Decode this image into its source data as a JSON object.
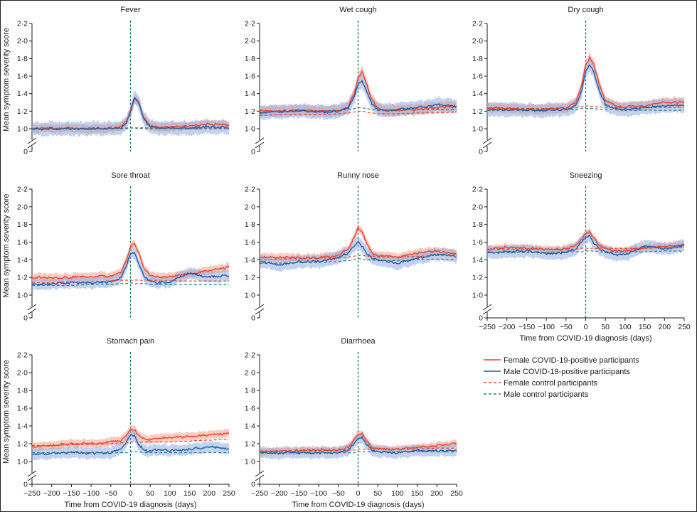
{
  "figure": {
    "border_color": "#222222",
    "colors": {
      "female_line": "#e8432c",
      "female_band": "#f4a08e",
      "male_line": "#1f5ba6",
      "male_band": "#8aa6dc",
      "female_control": "#e8432c",
      "male_control": "#2a7a8a",
      "diagnosis_line": "#1e6e68"
    }
  },
  "chart_data": {
    "type": "line",
    "shared": {
      "x_range": [
        -250,
        250
      ],
      "x_ticks": [
        -250,
        -200,
        -150,
        -100,
        -50,
        0,
        50,
        100,
        150,
        200,
        250
      ],
      "x_tick_labels": [
        "−250",
        "−200",
        "−150",
        "−100",
        "−50",
        "0",
        "50",
        "100",
        "150",
        "200",
        "250"
      ],
      "y_range": [
        1.0,
        2.2
      ],
      "y_ticks": [
        1.0,
        1.2,
        1.4,
        1.6,
        1.8,
        2.0,
        2.2
      ],
      "y_tick_labels": [
        "1·0",
        "1·2",
        "1·4",
        "1·6",
        "1·8",
        "2·0",
        "2·2"
      ],
      "y_zero_label": "0",
      "axis_break": true,
      "ylabel": "Mean symptom severity score",
      "xlabel": "Time from COVID-19 diagnosis (days)",
      "diagnosis_marker_x": 0,
      "grid": false
    },
    "series_names": [
      "Female COVID-19-positive participants",
      "Male COVID-19-positive participants",
      "Female control participants",
      "Male control participants"
    ],
    "x": [
      -250,
      -200,
      -150,
      -100,
      -50,
      -25,
      -10,
      0,
      10,
      20,
      35,
      50,
      75,
      100,
      150,
      200,
      250
    ],
    "panels": [
      {
        "title": "Fever",
        "series": [
          {
            "name": "Female COVID-19-positive participants",
            "values": [
              1.0,
              1.0,
              1.01,
              1.0,
              1.01,
              1.02,
              1.08,
              1.22,
              1.34,
              1.3,
              1.12,
              1.03,
              1.02,
              1.02,
              1.03,
              1.05,
              1.04
            ],
            "band": 0.06
          },
          {
            "name": "Male COVID-19-positive participants",
            "values": [
              1.0,
              1.0,
              1.0,
              1.0,
              1.0,
              1.01,
              1.06,
              1.2,
              1.35,
              1.3,
              1.1,
              1.02,
              1.01,
              1.01,
              1.01,
              1.02,
              1.01
            ],
            "band": 0.1
          },
          {
            "name": "Female control participants",
            "values": [
              1.0,
              1.0,
              1.0,
              1.0,
              1.0,
              1.0,
              1.01,
              1.01,
              1.01,
              1.01,
              1.01,
              1.01,
              1.01,
              1.01,
              1.01,
              1.01,
              1.01
            ]
          },
          {
            "name": "Male control participants",
            "values": [
              1.0,
              1.0,
              1.0,
              1.0,
              1.0,
              1.0,
              1.0,
              1.01,
              1.01,
              1.0,
              1.0,
              1.0,
              1.0,
              1.0,
              1.0,
              1.0,
              1.0
            ]
          }
        ]
      },
      {
        "title": "Wet cough",
        "series": [
          {
            "name": "Female COVID-19-positive participants",
            "values": [
              1.2,
              1.2,
              1.21,
              1.2,
              1.2,
              1.25,
              1.4,
              1.58,
              1.66,
              1.52,
              1.32,
              1.24,
              1.2,
              1.21,
              1.22,
              1.24,
              1.25
            ],
            "band": 0.08
          },
          {
            "name": "Male COVID-19-positive participants",
            "values": [
              1.18,
              1.19,
              1.2,
              1.19,
              1.2,
              1.24,
              1.36,
              1.5,
              1.54,
              1.44,
              1.28,
              1.22,
              1.2,
              1.22,
              1.24,
              1.27,
              1.26
            ],
            "band": 0.1
          },
          {
            "name": "Female control participants",
            "values": [
              1.15,
              1.16,
              1.16,
              1.16,
              1.17,
              1.18,
              1.19,
              1.2,
              1.2,
              1.19,
              1.18,
              1.17,
              1.17,
              1.17,
              1.18,
              1.18,
              1.19
            ]
          },
          {
            "name": "Male control participants",
            "values": [
              1.19,
              1.2,
              1.2,
              1.2,
              1.21,
              1.22,
              1.23,
              1.24,
              1.24,
              1.23,
              1.22,
              1.21,
              1.21,
              1.21,
              1.22,
              1.22,
              1.22
            ]
          }
        ]
      },
      {
        "title": "Dry cough",
        "series": [
          {
            "name": "Female COVID-19-positive participants",
            "values": [
              1.24,
              1.23,
              1.22,
              1.22,
              1.24,
              1.3,
              1.5,
              1.72,
              1.82,
              1.75,
              1.5,
              1.32,
              1.26,
              1.25,
              1.26,
              1.3,
              1.3
            ],
            "band": 0.07
          },
          {
            "name": "Male COVID-19-positive participants",
            "values": [
              1.22,
              1.22,
              1.21,
              1.21,
              1.22,
              1.26,
              1.44,
              1.64,
              1.73,
              1.66,
              1.42,
              1.28,
              1.23,
              1.22,
              1.24,
              1.26,
              1.27
            ],
            "band": 0.1
          },
          {
            "name": "Female control participants",
            "values": [
              1.23,
              1.23,
              1.23,
              1.23,
              1.24,
              1.24,
              1.25,
              1.26,
              1.26,
              1.25,
              1.25,
              1.24,
              1.24,
              1.24,
              1.24,
              1.24,
              1.24
            ]
          },
          {
            "name": "Male control participants",
            "values": [
              1.21,
              1.21,
              1.21,
              1.21,
              1.22,
              1.22,
              1.23,
              1.23,
              1.23,
              1.23,
              1.22,
              1.22,
              1.22,
              1.21,
              1.21,
              1.21,
              1.21
            ]
          }
        ]
      },
      {
        "title": "Sore throat",
        "series": [
          {
            "name": "Female COVID-19-positive participants",
            "values": [
              1.2,
              1.2,
              1.2,
              1.21,
              1.22,
              1.26,
              1.4,
              1.55,
              1.58,
              1.48,
              1.3,
              1.22,
              1.21,
              1.21,
              1.24,
              1.28,
              1.32
            ],
            "band": 0.06
          },
          {
            "name": "Male COVID-19-positive participants",
            "values": [
              1.12,
              1.13,
              1.14,
              1.14,
              1.15,
              1.2,
              1.34,
              1.47,
              1.48,
              1.36,
              1.2,
              1.16,
              1.14,
              1.15,
              1.25,
              1.2,
              1.22
            ],
            "band": 0.08
          },
          {
            "name": "Female control participants",
            "values": [
              1.14,
              1.14,
              1.15,
              1.15,
              1.16,
              1.17,
              1.17,
              1.17,
              1.17,
              1.17,
              1.17,
              1.17,
              1.16,
              1.16,
              1.16,
              1.16,
              1.16
            ]
          },
          {
            "name": "Male control participants",
            "values": [
              1.11,
              1.11,
              1.11,
              1.12,
              1.12,
              1.13,
              1.13,
              1.14,
              1.13,
              1.13,
              1.13,
              1.12,
              1.12,
              1.12,
              1.12,
              1.12,
              1.12
            ]
          }
        ]
      },
      {
        "title": "Runny nose",
        "series": [
          {
            "name": "Female COVID-19-positive participants",
            "values": [
              1.42,
              1.43,
              1.42,
              1.42,
              1.45,
              1.52,
              1.66,
              1.76,
              1.72,
              1.6,
              1.48,
              1.44,
              1.44,
              1.43,
              1.48,
              1.5,
              1.46
            ],
            "band": 0.06
          },
          {
            "name": "Male COVID-19-positive participants",
            "values": [
              1.38,
              1.34,
              1.38,
              1.38,
              1.42,
              1.48,
              1.56,
              1.6,
              1.56,
              1.48,
              1.42,
              1.4,
              1.38,
              1.36,
              1.42,
              1.46,
              1.44
            ],
            "band": 0.09
          },
          {
            "name": "Female control participants",
            "values": [
              1.4,
              1.41,
              1.41,
              1.42,
              1.42,
              1.43,
              1.44,
              1.45,
              1.45,
              1.44,
              1.44,
              1.43,
              1.43,
              1.43,
              1.44,
              1.45,
              1.45
            ]
          },
          {
            "name": "Male control participants",
            "values": [
              1.36,
              1.36,
              1.37,
              1.37,
              1.38,
              1.39,
              1.4,
              1.41,
              1.41,
              1.4,
              1.4,
              1.39,
              1.39,
              1.39,
              1.4,
              1.41,
              1.4
            ]
          }
        ]
      },
      {
        "title": "Sneezing",
        "series": [
          {
            "name": "Female COVID-19-positive participants",
            "values": [
              1.52,
              1.54,
              1.53,
              1.52,
              1.52,
              1.56,
              1.64,
              1.7,
              1.72,
              1.64,
              1.56,
              1.52,
              1.5,
              1.5,
              1.54,
              1.55,
              1.57
            ],
            "band": 0.05
          },
          {
            "name": "Male COVID-19-positive participants",
            "values": [
              1.48,
              1.49,
              1.5,
              1.47,
              1.48,
              1.52,
              1.6,
              1.66,
              1.68,
              1.6,
              1.52,
              1.48,
              1.46,
              1.46,
              1.56,
              1.52,
              1.56
            ],
            "band": 0.09
          },
          {
            "name": "Female control participants",
            "values": [
              1.52,
              1.52,
              1.52,
              1.52,
              1.52,
              1.52,
              1.53,
              1.53,
              1.53,
              1.53,
              1.53,
              1.53,
              1.53,
              1.53,
              1.53,
              1.54,
              1.54
            ]
          },
          {
            "name": "Male control participants",
            "values": [
              1.48,
              1.48,
              1.48,
              1.48,
              1.49,
              1.49,
              1.49,
              1.5,
              1.5,
              1.5,
              1.49,
              1.49,
              1.49,
              1.49,
              1.49,
              1.5,
              1.5
            ]
          }
        ]
      },
      {
        "title": "Stomach pain",
        "series": [
          {
            "name": "Female COVID-19-positive participants",
            "values": [
              1.17,
              1.18,
              1.2,
              1.2,
              1.22,
              1.24,
              1.3,
              1.36,
              1.36,
              1.3,
              1.25,
              1.24,
              1.26,
              1.27,
              1.28,
              1.3,
              1.32
            ],
            "band": 0.06
          },
          {
            "name": "Male COVID-19-positive participants",
            "values": [
              1.08,
              1.09,
              1.1,
              1.09,
              1.1,
              1.14,
              1.22,
              1.3,
              1.3,
              1.2,
              1.12,
              1.12,
              1.14,
              1.12,
              1.14,
              1.16,
              1.14
            ],
            "band": 0.08
          },
          {
            "name": "Female control participants",
            "values": [
              1.18,
              1.18,
              1.19,
              1.19,
              1.2,
              1.21,
              1.21,
              1.22,
              1.22,
              1.22,
              1.22,
              1.22,
              1.22,
              1.22,
              1.23,
              1.24,
              1.25
            ]
          },
          {
            "name": "Male control participants",
            "values": [
              1.1,
              1.1,
              1.1,
              1.1,
              1.1,
              1.1,
              1.1,
              1.11,
              1.11,
              1.11,
              1.1,
              1.1,
              1.1,
              1.1,
              1.1,
              1.1,
              1.1
            ]
          }
        ]
      },
      {
        "title": "Diarrhoea",
        "series": [
          {
            "name": "Female COVID-19-positive participants",
            "values": [
              1.11,
              1.12,
              1.12,
              1.13,
              1.13,
              1.16,
              1.24,
              1.3,
              1.32,
              1.24,
              1.16,
              1.14,
              1.14,
              1.14,
              1.16,
              1.18,
              1.2
            ],
            "band": 0.05
          },
          {
            "name": "Male COVID-19-positive participants",
            "values": [
              1.09,
              1.1,
              1.1,
              1.1,
              1.1,
              1.13,
              1.2,
              1.26,
              1.27,
              1.2,
              1.13,
              1.11,
              1.1,
              1.1,
              1.12,
              1.12,
              1.12
            ],
            "band": 0.08
          },
          {
            "name": "Female control participants",
            "values": [
              1.12,
              1.12,
              1.12,
              1.12,
              1.13,
              1.13,
              1.13,
              1.14,
              1.14,
              1.14,
              1.14,
              1.14,
              1.14,
              1.14,
              1.14,
              1.15,
              1.15
            ]
          },
          {
            "name": "Male control participants",
            "values": [
              1.1,
              1.1,
              1.1,
              1.1,
              1.1,
              1.1,
              1.1,
              1.11,
              1.11,
              1.11,
              1.11,
              1.11,
              1.11,
              1.11,
              1.11,
              1.11,
              1.11
            ]
          }
        ]
      }
    ],
    "legend": {
      "placement": "bottom-right",
      "entries": [
        {
          "label": "Female COVID-19-positive participants",
          "style": "solid",
          "color": "#e8432c"
        },
        {
          "label": "Male COVID-19-positive participants",
          "style": "solid",
          "color": "#1f5ba6"
        },
        {
          "label": "Female control participants",
          "style": "dashed",
          "color": "#e8432c"
        },
        {
          "label": "Male control participants",
          "style": "dashed",
          "color": "#2a7a8a"
        }
      ]
    }
  }
}
